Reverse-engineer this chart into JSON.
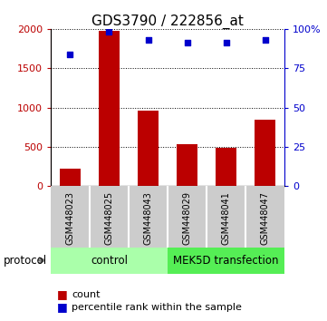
{
  "title": "GDS3790 / 222856_at",
  "samples": [
    "GSM448023",
    "GSM448025",
    "GSM448043",
    "GSM448029",
    "GSM448041",
    "GSM448047"
  ],
  "counts": [
    220,
    1980,
    960,
    530,
    490,
    840
  ],
  "percentile_ranks": [
    84,
    98,
    93,
    91,
    91,
    93
  ],
  "ylim_left": [
    0,
    2000
  ],
  "ylim_right": [
    0,
    100
  ],
  "yticks_left": [
    0,
    500,
    1000,
    1500,
    2000
  ],
  "yticks_right": [
    0,
    25,
    50,
    75,
    100
  ],
  "bar_color": "#bb0000",
  "dot_color": "#0000cc",
  "n_control": 3,
  "n_transfect": 3,
  "control_label": "control",
  "transfection_label": "MEK5D transfection",
  "protocol_label": "protocol",
  "legend_bar_label": "count",
  "legend_dot_label": "percentile rank within the sample",
  "control_bg": "#aaffaa",
  "transfection_bg": "#55ee55",
  "sample_bg": "#cccccc",
  "title_fontsize": 11,
  "tick_fontsize": 8,
  "sample_tick_fontsize": 7
}
